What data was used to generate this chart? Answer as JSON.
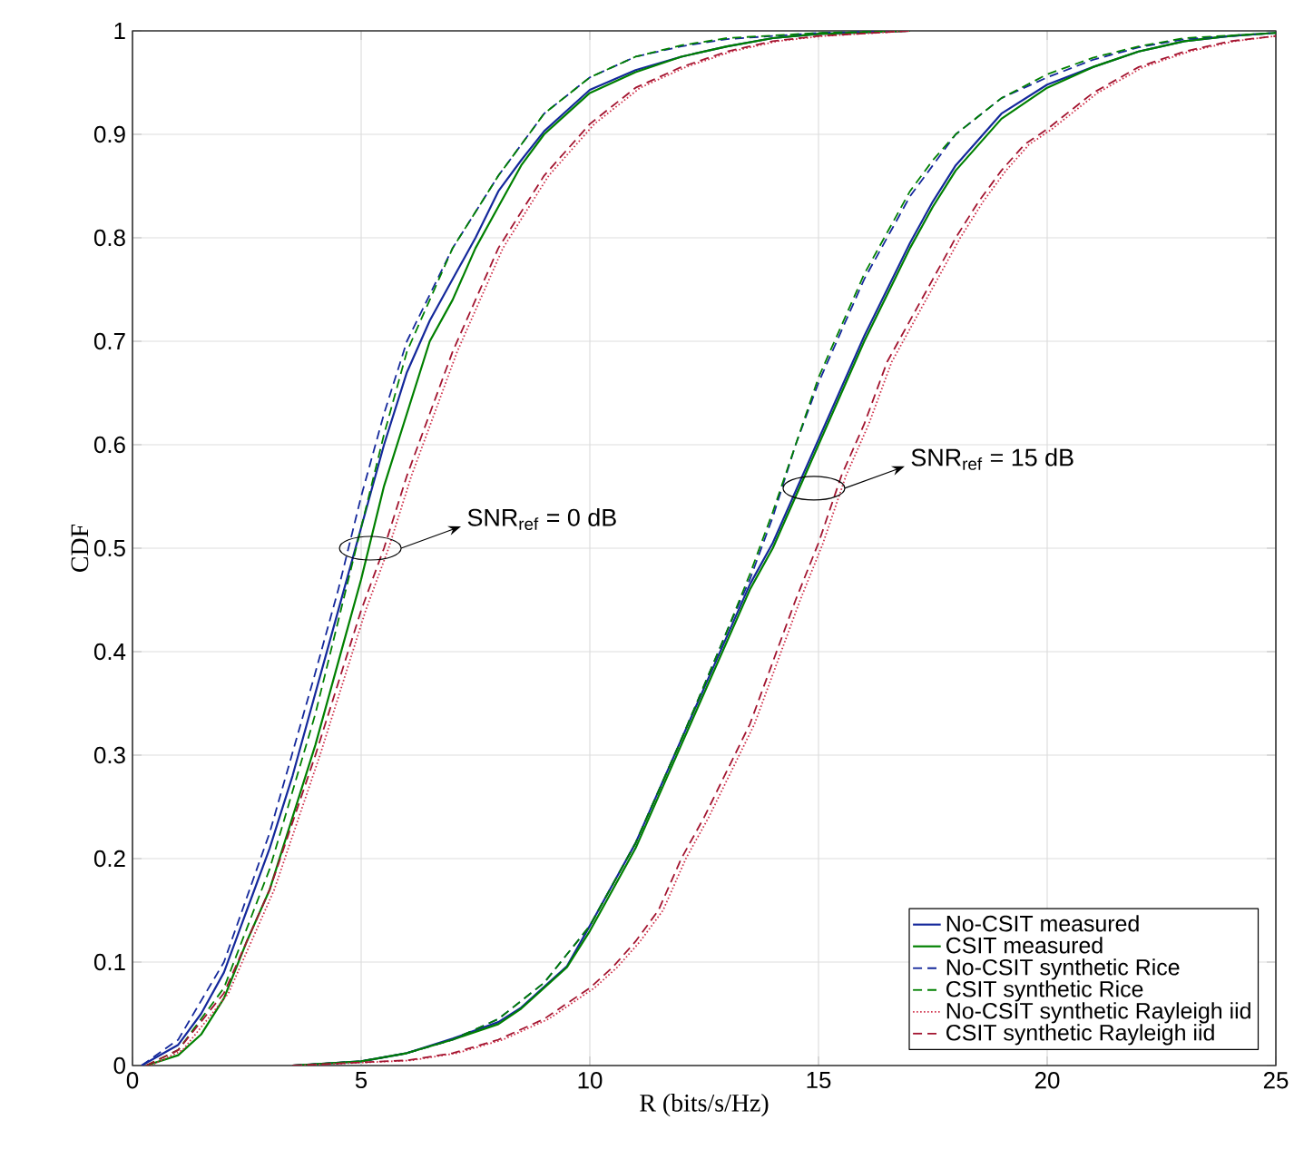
{
  "chart_data": {
    "type": "line",
    "xlabel": "R (bits/s/Hz)",
    "ylabel": "CDF",
    "xlim": [
      0,
      25
    ],
    "ylim": [
      0,
      1
    ],
    "xticks": [
      0,
      5,
      10,
      15,
      20,
      25
    ],
    "yticks": [
      0,
      0.1,
      0.2,
      0.3,
      0.4,
      0.5,
      0.6,
      0.7,
      0.8,
      0.9,
      1
    ],
    "grid": true,
    "legend": "bottom right",
    "series": [
      {
        "name": "No-CSIT measured",
        "color": "#14289b",
        "line_style": "solid",
        "x": [
          0.2,
          1,
          1.5,
          2,
          2.5,
          3,
          3.5,
          4,
          4.5,
          5,
          5.5,
          6,
          6.5,
          7,
          7.5,
          8,
          8.5,
          9,
          9.5,
          10,
          11,
          12,
          13,
          14,
          15,
          17,
          null,
          3.5,
          5,
          6,
          7,
          8,
          8.5,
          9,
          9.5,
          10,
          10.5,
          11,
          11.5,
          12,
          12.5,
          13,
          13.5,
          14,
          14.5,
          15,
          15.5,
          16,
          16.5,
          17,
          17.5,
          18,
          18.5,
          19,
          20,
          21,
          22,
          23,
          24,
          25
        ],
        "values": [
          0,
          0.02,
          0.05,
          0.09,
          0.15,
          0.21,
          0.28,
          0.36,
          0.44,
          0.52,
          0.6,
          0.67,
          0.72,
          0.76,
          0.8,
          0.845,
          0.875,
          0.903,
          0.923,
          0.943,
          0.962,
          0.975,
          0.985,
          0.993,
          0.997,
          1,
          null,
          0,
          0.004,
          0.012,
          0.026,
          0.042,
          0.056,
          0.076,
          0.096,
          0.135,
          0.175,
          0.215,
          0.265,
          0.315,
          0.365,
          0.415,
          0.465,
          0.505,
          0.555,
          0.605,
          0.655,
          0.705,
          0.75,
          0.795,
          0.835,
          0.87,
          0.895,
          0.92,
          0.948,
          0.965,
          0.98,
          0.99,
          0.995,
          0.998
        ]
      },
      {
        "name": "CSIT measured",
        "color": "#008000",
        "line_style": "solid",
        "x": [
          0.3,
          1,
          1.5,
          2,
          2.5,
          3,
          3.5,
          4,
          4.5,
          5,
          5.5,
          6,
          6.5,
          7,
          7.5,
          8,
          8.5,
          9,
          9.5,
          10,
          11,
          12,
          13,
          14,
          15,
          17,
          null,
          3.5,
          5,
          6,
          7,
          8,
          8.5,
          9,
          9.5,
          10,
          10.5,
          11,
          11.5,
          12,
          12.5,
          13,
          13.5,
          14,
          14.5,
          15,
          15.5,
          16,
          16.5,
          17,
          17.5,
          18,
          18.5,
          19,
          20,
          21,
          22,
          23,
          24,
          25
        ],
        "values": [
          0,
          0.01,
          0.03,
          0.065,
          0.12,
          0.17,
          0.24,
          0.31,
          0.39,
          0.47,
          0.56,
          0.63,
          0.7,
          0.74,
          0.79,
          0.83,
          0.87,
          0.9,
          0.92,
          0.94,
          0.96,
          0.975,
          0.985,
          0.993,
          0.997,
          1,
          null,
          0,
          0.004,
          0.012,
          0.025,
          0.04,
          0.055,
          0.075,
          0.095,
          0.13,
          0.17,
          0.21,
          0.26,
          0.31,
          0.36,
          0.41,
          0.46,
          0.5,
          0.55,
          0.6,
          0.65,
          0.7,
          0.745,
          0.79,
          0.83,
          0.865,
          0.89,
          0.915,
          0.945,
          0.965,
          0.98,
          0.99,
          0.995,
          0.998
        ]
      },
      {
        "name": "No-CSIT synthetic Rice",
        "color": "#14289b",
        "line_style": "dashed",
        "x": [
          0.2,
          1,
          2,
          3,
          4,
          4.5,
          5,
          5.5,
          6,
          7,
          8,
          9,
          10,
          11,
          12,
          13,
          15,
          17,
          null,
          3.5,
          5,
          6,
          7,
          8,
          9,
          10,
          11,
          12,
          13,
          13.5,
          14,
          14.5,
          15,
          15.5,
          16,
          16.5,
          17,
          17.5,
          18,
          19,
          20,
          21,
          22,
          23,
          25
        ],
        "values": [
          0,
          0.025,
          0.1,
          0.225,
          0.38,
          0.46,
          0.55,
          0.63,
          0.7,
          0.79,
          0.86,
          0.92,
          0.955,
          0.975,
          0.985,
          0.992,
          0.998,
          1,
          null,
          0,
          0.004,
          0.012,
          0.025,
          0.045,
          0.08,
          0.135,
          0.215,
          0.315,
          0.42,
          0.47,
          0.53,
          0.6,
          0.66,
          0.71,
          0.76,
          0.8,
          0.84,
          0.87,
          0.9,
          0.935,
          0.955,
          0.972,
          0.984,
          0.992,
          0.998
        ]
      },
      {
        "name": "CSIT synthetic Rice",
        "color": "#008000",
        "line_style": "dashed",
        "x": [
          0.3,
          1,
          2,
          3,
          4,
          4.5,
          5,
          5.5,
          6,
          7,
          8,
          9,
          10,
          11,
          12,
          13,
          15,
          17,
          null,
          3.5,
          5,
          6,
          7,
          8,
          9,
          10,
          11,
          12,
          13,
          13.5,
          14,
          14.5,
          15,
          15.5,
          16,
          16.5,
          17,
          17.5,
          18,
          19,
          20,
          21,
          22,
          23,
          25
        ],
        "values": [
          0,
          0.015,
          0.075,
          0.19,
          0.34,
          0.43,
          0.52,
          0.61,
          0.69,
          0.79,
          0.86,
          0.92,
          0.955,
          0.975,
          0.986,
          0.993,
          0.998,
          1,
          null,
          0,
          0.004,
          0.012,
          0.025,
          0.045,
          0.08,
          0.135,
          0.215,
          0.315,
          0.42,
          0.475,
          0.535,
          0.6,
          0.665,
          0.715,
          0.765,
          0.805,
          0.845,
          0.875,
          0.9,
          0.935,
          0.958,
          0.974,
          0.985,
          0.993,
          0.998
        ]
      },
      {
        "name": "No-CSIT synthetic Rayleigh iid",
        "color": "#d0304a",
        "line_style": "dotted",
        "x": [
          0.4,
          1.1,
          2.1,
          3.1,
          4.1,
          4.6,
          5.1,
          5.6,
          6.1,
          6.6,
          7.1,
          7.6,
          8.1,
          9.1,
          10.1,
          11.1,
          12.1,
          13.1,
          14.1,
          15.1,
          17,
          null,
          3.6,
          6.1,
          7.1,
          8.1,
          9.1,
          10.1,
          10.6,
          11.1,
          11.6,
          12.1,
          12.6,
          13.1,
          13.6,
          14.1,
          14.6,
          15.1,
          15.6,
          16.1,
          16.6,
          17.1,
          17.6,
          18.1,
          18.6,
          19.1,
          19.6,
          20.1,
          21.1,
          22.1,
          23.1,
          24.1,
          25
        ],
        "values": [
          0,
          0.015,
          0.07,
          0.17,
          0.3,
          0.37,
          0.44,
          0.5,
          0.57,
          0.63,
          0.69,
          0.74,
          0.79,
          0.86,
          0.91,
          0.945,
          0.965,
          0.98,
          0.99,
          0.995,
          1,
          null,
          0,
          0.005,
          0.012,
          0.025,
          0.045,
          0.075,
          0.095,
          0.12,
          0.15,
          0.2,
          0.24,
          0.285,
          0.33,
          0.39,
          0.45,
          0.505,
          0.57,
          0.62,
          0.68,
          0.72,
          0.76,
          0.8,
          0.835,
          0.865,
          0.89,
          0.905,
          0.94,
          0.965,
          0.98,
          0.99,
          0.995
        ]
      },
      {
        "name": "CSIT synthetic Rayleigh iid",
        "color": "#a2142f",
        "line_style": "dashed",
        "x": [
          0.3,
          1,
          2,
          3,
          4,
          4.5,
          5,
          5.5,
          6,
          6.5,
          7,
          7.5,
          8,
          9,
          10,
          11,
          12,
          13,
          14,
          15,
          17,
          null,
          3.5,
          6,
          7,
          8,
          9,
          10,
          10.5,
          11,
          11.5,
          12,
          12.5,
          13,
          13.5,
          14,
          14.5,
          15,
          15.5,
          16,
          16.5,
          17,
          17.5,
          18,
          18.5,
          19,
          19.5,
          20,
          21,
          22,
          23,
          24,
          25
        ],
        "values": [
          0,
          0.015,
          0.07,
          0.17,
          0.3,
          0.37,
          0.44,
          0.5,
          0.57,
          0.63,
          0.69,
          0.74,
          0.79,
          0.86,
          0.91,
          0.945,
          0.965,
          0.98,
          0.99,
          0.995,
          1,
          null,
          0,
          0.005,
          0.012,
          0.025,
          0.045,
          0.075,
          0.095,
          0.12,
          0.15,
          0.2,
          0.24,
          0.285,
          0.33,
          0.39,
          0.45,
          0.505,
          0.57,
          0.62,
          0.68,
          0.72,
          0.76,
          0.8,
          0.835,
          0.865,
          0.89,
          0.905,
          0.94,
          0.965,
          0.98,
          0.99,
          0.995
        ]
      }
    ],
    "annotations": [
      "SNR$_{ref}$ = 0 dB",
      "SNR$_{ref}$ = 15 dB"
    ]
  }
}
